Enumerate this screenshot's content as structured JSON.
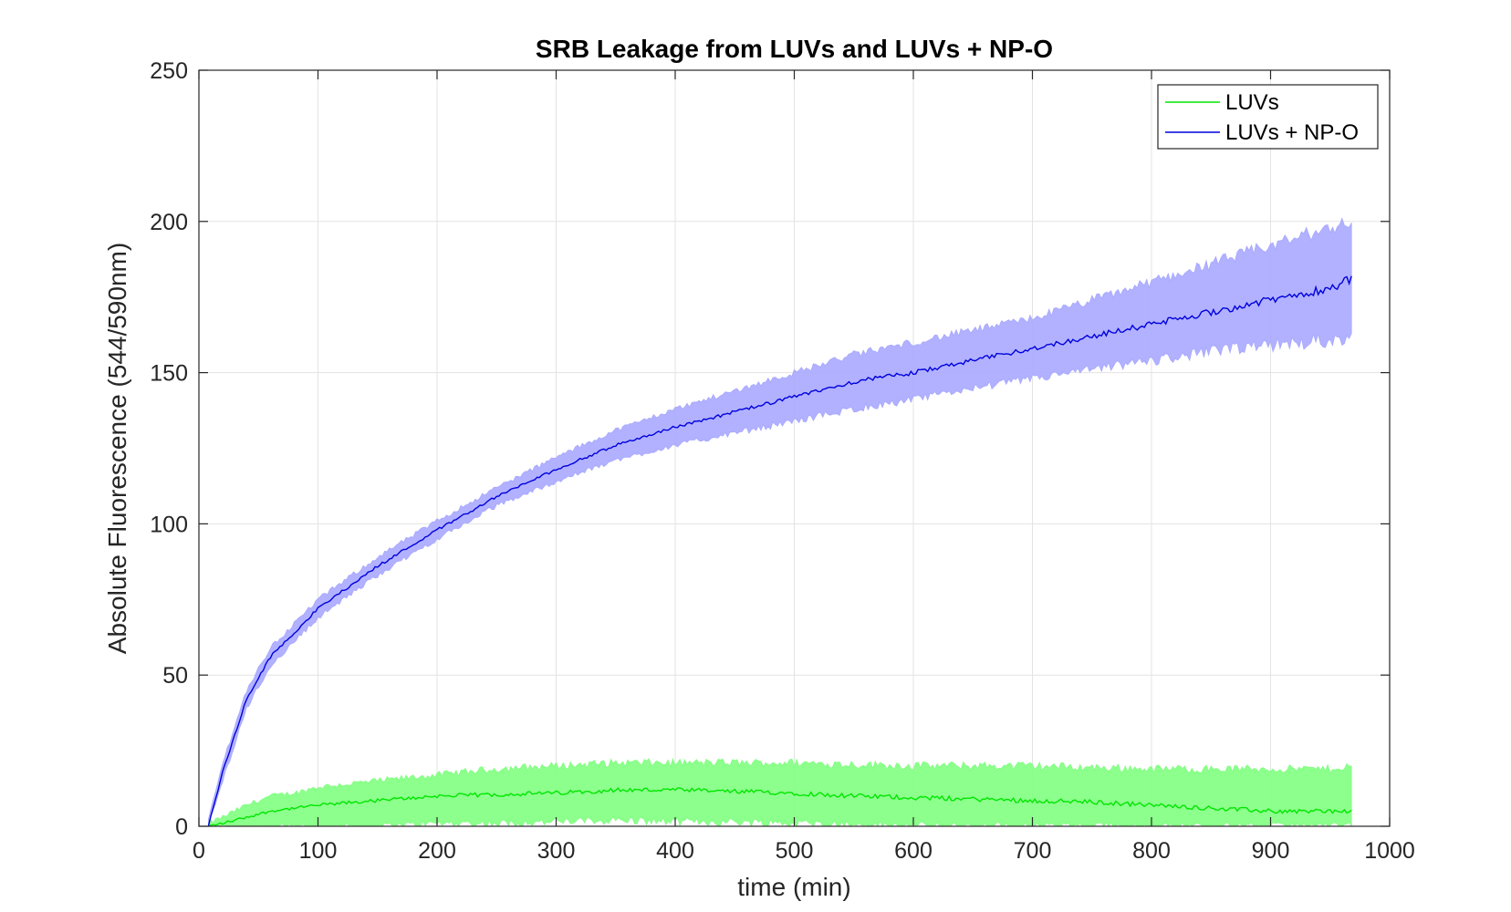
{
  "chart_data": {
    "type": "line",
    "title": "SRB Leakage from LUVs and LUVs + NP-O",
    "xlabel": "time (min)",
    "ylabel": "Absolute Fluorescence (544/590nm)",
    "xlim": [
      0,
      1000
    ],
    "ylim": [
      0,
      250
    ],
    "xticks": [
      0,
      100,
      200,
      300,
      400,
      500,
      600,
      700,
      800,
      900,
      1000
    ],
    "yticks": [
      0,
      50,
      100,
      150,
      200,
      250
    ],
    "grid": true,
    "legend_position": "top-right",
    "series": [
      {
        "name": "LUVs",
        "line_color": "#00e600",
        "band_color": "#80ff80",
        "x": [
          8,
          20,
          40,
          60,
          80,
          100,
          150,
          200,
          250,
          300,
          350,
          400,
          450,
          500,
          550,
          600,
          650,
          700,
          750,
          800,
          850,
          900,
          950,
          968
        ],
        "mean": [
          0,
          1,
          3,
          5,
          6,
          7,
          8.5,
          10,
          10.5,
          11,
          12,
          12,
          11.5,
          11,
          10,
          9.5,
          9,
          8.5,
          8,
          7,
          6,
          5,
          5,
          5
        ],
        "lower": [
          0,
          0,
          0,
          0,
          0,
          0,
          0,
          1,
          1,
          1.5,
          2,
          1.5,
          1.5,
          1,
          0.5,
          0,
          0,
          0,
          0,
          0,
          0,
          0,
          0,
          0
        ],
        "upper": [
          1,
          3,
          7,
          10,
          11,
          13,
          15,
          17,
          19,
          20,
          21,
          21,
          21,
          21,
          20.5,
          20,
          20,
          20,
          19.5,
          19,
          19,
          19,
          19,
          20
        ]
      },
      {
        "name": "LUVs + NP-O",
        "line_color": "#0000dd",
        "band_color": "#a8a8ff",
        "x": [
          8,
          20,
          40,
          60,
          80,
          100,
          150,
          200,
          250,
          300,
          350,
          400,
          450,
          500,
          550,
          600,
          650,
          700,
          750,
          800,
          850,
          900,
          950,
          968
        ],
        "mean": [
          0,
          18,
          42,
          56,
          64,
          72,
          86,
          98,
          109,
          118,
          126,
          132,
          137,
          142,
          147,
          150,
          154,
          158,
          162,
          166,
          170,
          174,
          178,
          181
        ],
        "lower": [
          0,
          15,
          39,
          53,
          61,
          69,
          83,
          95,
          106,
          114,
          121,
          126,
          130,
          134,
          138,
          141,
          145,
          148,
          151,
          154,
          157,
          159,
          161,
          162
        ],
        "upper": [
          2,
          21,
          45,
          59,
          67,
          75,
          89,
          101,
          112,
          122,
          131,
          138,
          144,
          150,
          156,
          160,
          164,
          168,
          174,
          180,
          186,
          192,
          198,
          200
        ]
      }
    ]
  },
  "legend": {
    "items": [
      "LUVs",
      "LUVs + NP-O"
    ]
  }
}
